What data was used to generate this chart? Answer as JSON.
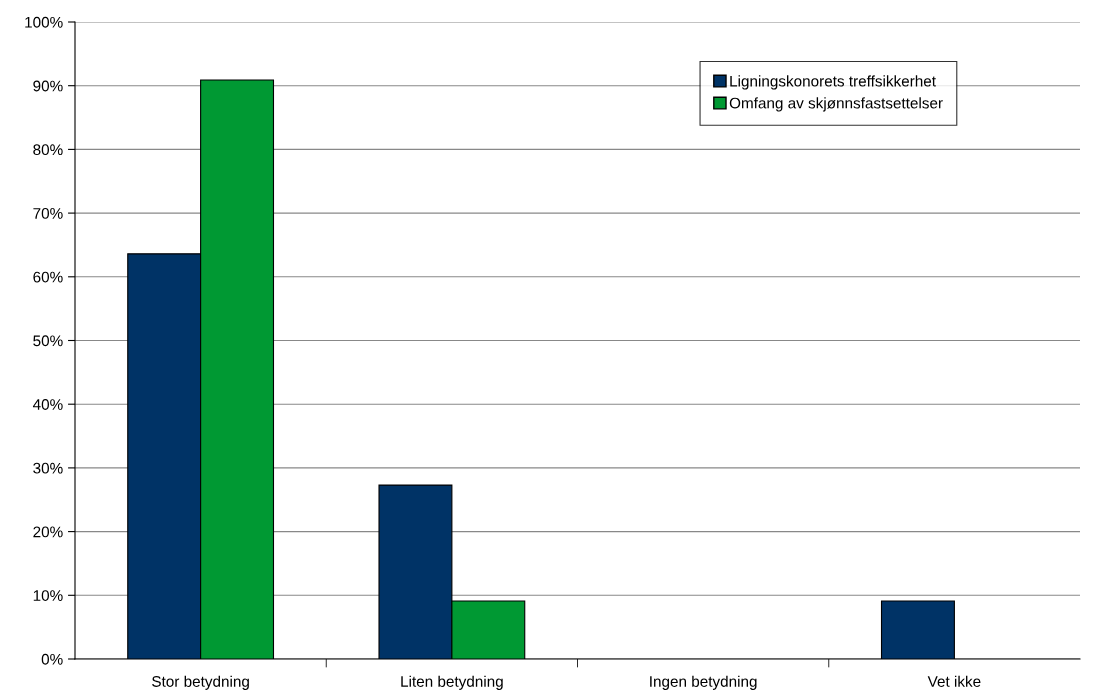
{
  "chart_data": {
    "type": "bar",
    "categories": [
      "Stor betydning",
      "Liten betydning",
      "Ingen betydning",
      "Vet ikke"
    ],
    "series": [
      {
        "name": "Ligningskonorets treffsikkerhet",
        "color": "#003366",
        "values": [
          63.6,
          27.3,
          0,
          9.1
        ]
      },
      {
        "name": "Omfang av skjønnsfastsettelser",
        "color": "#009933",
        "values": [
          90.9,
          9.1,
          0,
          0
        ]
      }
    ],
    "ylim": [
      0,
      100
    ],
    "yticks": [
      {
        "value": 0,
        "label": "0%"
      },
      {
        "value": 10,
        "label": "10%"
      },
      {
        "value": 20,
        "label": "20%"
      },
      {
        "value": 30,
        "label": "30%"
      },
      {
        "value": 40,
        "label": "40%"
      },
      {
        "value": 50,
        "label": "50%"
      },
      {
        "value": 60,
        "label": "60%"
      },
      {
        "value": 70,
        "label": "70%"
      },
      {
        "value": 80,
        "label": "80%"
      },
      {
        "value": 90,
        "label": "90%"
      },
      {
        "value": 100,
        "label": "100%"
      }
    ],
    "grid": "y",
    "legend": "top right"
  }
}
